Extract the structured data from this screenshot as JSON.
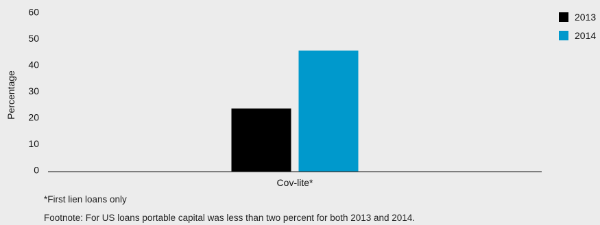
{
  "chart_data": {
    "type": "bar",
    "categories": [
      "Cov-lite*"
    ],
    "series": [
      {
        "name": "2013",
        "values": [
          24
        ],
        "color": "#000000"
      },
      {
        "name": "2014",
        "values": [
          46
        ],
        "color": "#0099cc"
      }
    ],
    "ylabel": "Percentage",
    "xlabel": "",
    "ylim": [
      0,
      60
    ],
    "yticks": [
      0,
      10,
      20,
      30,
      40,
      50,
      60
    ],
    "grid": false,
    "legend_position": "top-right"
  },
  "notes": {
    "asterisk": "*First lien loans only",
    "footnote": "Footnote: For US loans portable capital was less than two percent for both 2013 and 2014."
  }
}
